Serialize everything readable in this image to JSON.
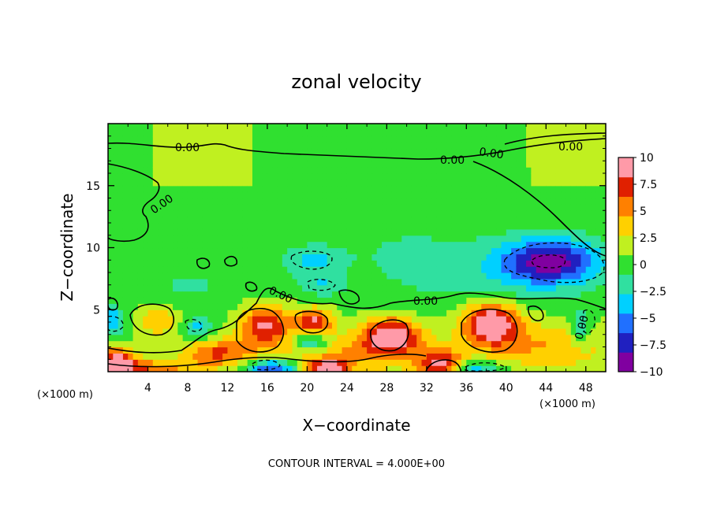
{
  "chart_data": {
    "type": "heatmap",
    "title": "zonal velocity",
    "xlabel": "X−coordinate",
    "ylabel": "Z−coordinate",
    "x_unit_left": "(×1000 m)",
    "x_unit_right": "(×1000 m)",
    "footer": "CONTOUR INTERVAL = 4.000E+00",
    "xlim": [
      0,
      50
    ],
    "ylim": [
      0,
      20
    ],
    "x_ticks": [
      4,
      8,
      12,
      16,
      20,
      24,
      28,
      32,
      36,
      40,
      44,
      48
    ],
    "x_tick_labels": [
      "4",
      "8",
      "12",
      "16",
      "20",
      "24",
      "28",
      "32",
      "36",
      "40",
      "44",
      "48"
    ],
    "y_ticks": [
      5,
      10,
      15
    ],
    "y_tick_labels": [
      "5",
      "10",
      "15"
    ],
    "colorbar": {
      "range": [
        -10,
        10
      ],
      "ticks": [
        10,
        7.5,
        5,
        2.5,
        0,
        -2.5,
        -5,
        -7.5,
        -10
      ],
      "tick_labels": [
        "10",
        "7.5",
        "5",
        "2.5",
        "0",
        "−2.5",
        "−5",
        "−7.5",
        "−10"
      ],
      "colors": [
        "#8000a0",
        "#2020c0",
        "#2070ff",
        "#00d0ff",
        "#30e0a0",
        "#30e030",
        "#c0f020",
        "#ffd000",
        "#ff8000",
        "#e02000",
        "#ff9aa8"
      ]
    },
    "contour_interval": 4,
    "contour_labels": [
      "0.00",
      "0.00",
      "0.00",
      "0.00",
      "0.00",
      "0.00",
      "0.00",
      "0.00"
    ],
    "background_value": 0.5,
    "features": [
      {
        "x": 44.5,
        "z": 9.0,
        "value": -9,
        "sx": 3.5,
        "sz": 1.3
      },
      {
        "x": 20.5,
        "z": 9.0,
        "value": -3.5,
        "sx": 2.0,
        "sz": 0.8
      },
      {
        "x": 21.5,
        "z": 7.0,
        "value": -3.0,
        "sx": 1.5,
        "sz": 0.6
      },
      {
        "x": 30.0,
        "z": 9.5,
        "value": -1.5,
        "sx": 6.0,
        "sz": 2.5
      },
      {
        "x": 40.0,
        "z": 7.5,
        "value": -2.0,
        "sx": 6.0,
        "sz": 1.8
      },
      {
        "x": 8.0,
        "z": 7.0,
        "value": -1.5,
        "sx": 6.0,
        "sz": 1.5
      },
      {
        "x": 0.5,
        "z": 4.0,
        "value": -5,
        "sx": 0.8,
        "sz": 0.8
      },
      {
        "x": 20.5,
        "z": 2.5,
        "value": -6,
        "sx": 1.2,
        "sz": 0.6
      },
      {
        "x": 16.5,
        "z": 0.2,
        "value": -8,
        "sx": 1.8,
        "sz": 0.6
      },
      {
        "x": 36.0,
        "z": 0.3,
        "value": -6,
        "sx": 2.5,
        "sz": 0.5
      },
      {
        "x": 47.5,
        "z": 3.5,
        "value": -4,
        "sx": 0.8,
        "sz": 1.0
      },
      {
        "x": 9.0,
        "z": 3.5,
        "value": -4,
        "sx": 1.0,
        "sz": 0.6
      },
      {
        "x": 15.8,
        "z": 3.8,
        "value": 8,
        "sx": 1.8,
        "sz": 1.2
      },
      {
        "x": 20.7,
        "z": 4.0,
        "value": 8,
        "sx": 1.3,
        "sz": 0.8
      },
      {
        "x": 28.5,
        "z": 3.0,
        "value": 9,
        "sx": 2.0,
        "sz": 1.0
      },
      {
        "x": 38.5,
        "z": 4.0,
        "value": 10,
        "sx": 2.0,
        "sz": 1.2
      },
      {
        "x": 33.5,
        "z": 0.4,
        "value": 10,
        "sx": 1.6,
        "sz": 0.8
      },
      {
        "x": 0.8,
        "z": 0.8,
        "value": 9,
        "sx": 1.5,
        "sz": 0.8
      },
      {
        "x": 11.0,
        "z": 1.5,
        "value": 6,
        "sx": 2.5,
        "sz": 0.8
      },
      {
        "x": 5.0,
        "z": 4.2,
        "value": 4,
        "sx": 1.5,
        "sz": 0.9
      },
      {
        "x": 25.0,
        "z": 1.5,
        "value": 4,
        "sx": 6.0,
        "sz": 1.2
      },
      {
        "x": 44.0,
        "z": 2.0,
        "value": 4,
        "sx": 5.0,
        "sz": 1.5
      },
      {
        "x": 22.0,
        "z": 0.3,
        "value": 8,
        "sx": 1.5,
        "sz": 0.5
      },
      {
        "x": 4.5,
        "z": 0.3,
        "value": 5,
        "sx": 3.0,
        "sz": 0.5
      }
    ]
  }
}
